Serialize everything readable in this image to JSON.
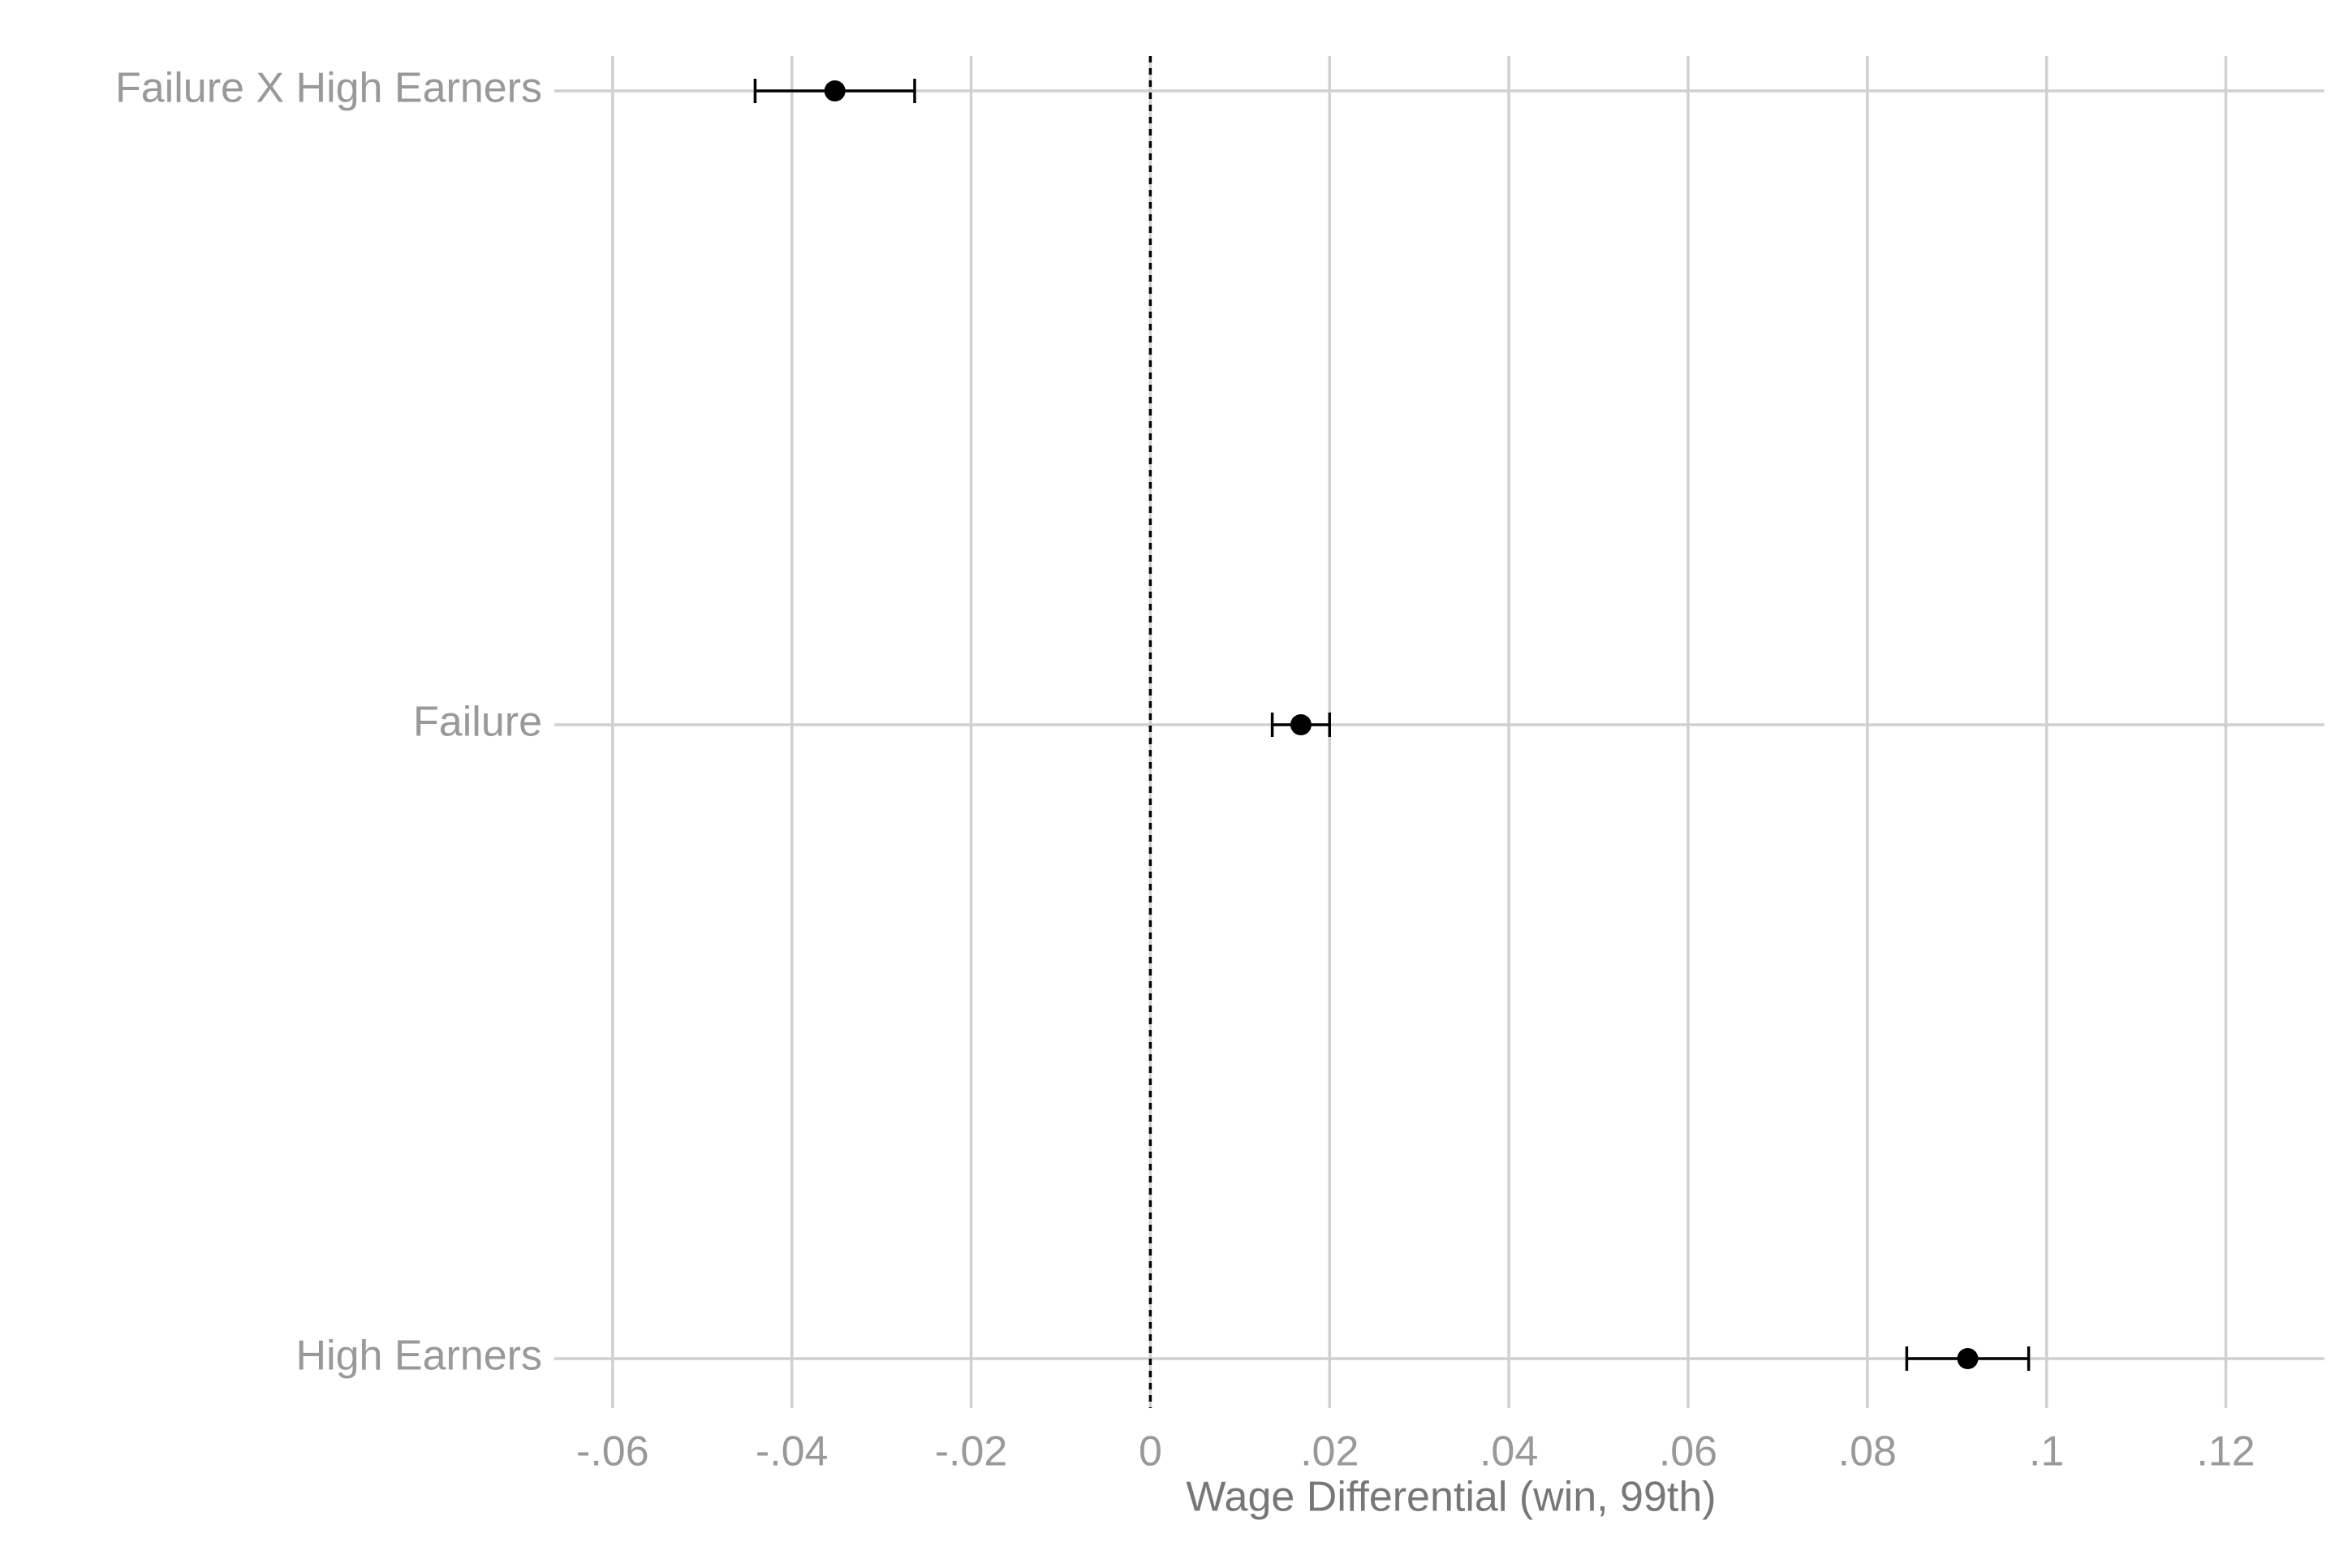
{
  "chart_data": {
    "type": "coefplot",
    "x_label": "Wage Differential (win, 99th)",
    "categories": [
      "Failure X High Earners",
      "Failure",
      "High Earners"
    ],
    "values": [
      -0.0352,
      0.0168,
      0.0912
    ],
    "errors": [
      0.0089,
      0.0032,
      0.0068
    ],
    "color": "#000000",
    "reference_line": 0,
    "xlim": [
      -0.0656,
      0.131
    ],
    "xticks": [
      {
        "value": -0.06,
        "label": "-.06"
      },
      {
        "value": -0.04,
        "label": "-.04"
      },
      {
        "value": -0.02,
        "label": "-.02"
      },
      0,
      {
        "value": 0.02,
        "label": ".02"
      },
      {
        "value": 0.04,
        "label": ".04"
      },
      {
        "value": 0.06,
        "label": ".06"
      },
      {
        "value": 0.08,
        "label": ".08"
      },
      {
        "value": 0.1,
        "label": ".1"
      },
      {
        "value": 0.12,
        "label": ".12"
      }
    ],
    "grid": true
  }
}
